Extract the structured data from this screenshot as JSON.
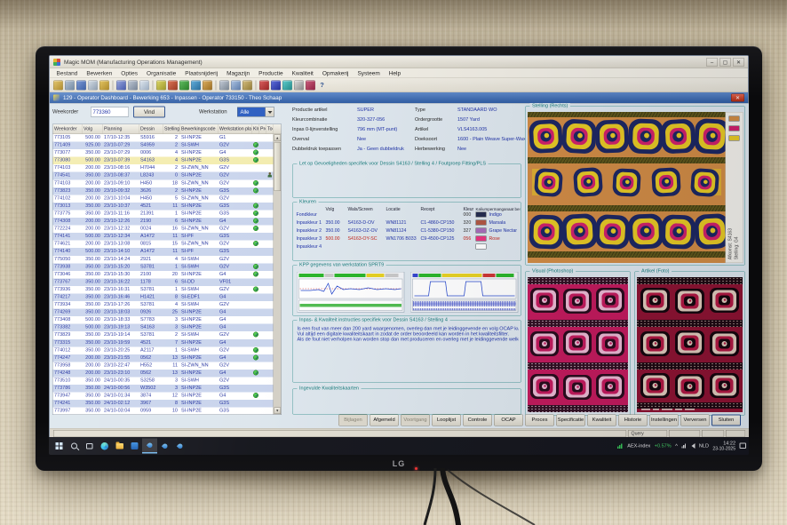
{
  "window": {
    "title": "Magic MOM (Manufacturing Operations Management)",
    "controls": {
      "minimize": "–",
      "maximize": "▢",
      "close": "✕"
    },
    "menu": [
      "Bestand",
      "Bewerken",
      "Opties",
      "Organisatie",
      "Plaatsnijderij",
      "Magazijn",
      "Productie",
      "Kwaliteit",
      "Opmakerij",
      "Systeem",
      "Help"
    ],
    "toolbar_icons": [
      {
        "name": "open",
        "c1": "#e0c060",
        "c2": "#a8821c"
      },
      {
        "name": "print",
        "c1": "#aebdcd",
        "c2": "#67819c"
      },
      {
        "name": "save",
        "c1": "#6f8fd0",
        "c2": "#2f55a0"
      },
      {
        "name": "preview",
        "c1": "#cfd8e2",
        "c2": "#8898ab"
      },
      {
        "name": "mail",
        "c1": "#e0bf55",
        "c2": "#a8821c"
      },
      {
        "name": "sep"
      },
      {
        "name": "grid",
        "c1": "#8f9fd8",
        "c2": "#3c50a8"
      },
      {
        "name": "layout",
        "c1": "#b8c2cf",
        "c2": "#707e92"
      },
      {
        "name": "zoom",
        "c1": "#dce4ec",
        "c2": "#97a9bf"
      },
      {
        "name": "sep"
      },
      {
        "name": "tag",
        "c1": "#d8d25a",
        "c2": "#989220"
      },
      {
        "name": "target",
        "c1": "#d86a4a",
        "c2": "#98321a"
      },
      {
        "name": "play",
        "c1": "#58b858",
        "c2": "#1f7a1f"
      },
      {
        "name": "refresh",
        "c1": "#58a8d8",
        "c2": "#1f6898"
      },
      {
        "name": "undo",
        "c1": "#d8a858",
        "c2": "#986818"
      },
      {
        "name": "sep"
      },
      {
        "name": "cut",
        "c1": "#c0c8d4",
        "c2": "#76828f"
      },
      {
        "name": "copy",
        "c1": "#a8c0e0",
        "c2": "#5878a8"
      },
      {
        "name": "paste",
        "c1": "#d0b878",
        "c2": "#907830"
      },
      {
        "name": "sep"
      },
      {
        "name": "grid-red",
        "c1": "#d85858",
        "c2": "#981f1f"
      },
      {
        "name": "grid-blue",
        "c1": "#5868d8",
        "c2": "#1f2c98"
      },
      {
        "name": "grid-teal",
        "c1": "#58c8c8",
        "c2": "#1f8888"
      },
      {
        "name": "calendar",
        "c1": "#d8d8d8",
        "c2": "#888888"
      },
      {
        "name": "chart",
        "c1": "#c85878",
        "c2": "#8f1f40"
      }
    ],
    "toolbar_help": "?",
    "subwindow_title": "129 - Operator Dashboard - Bewerking 653 - Inpassen - Operator 733150 - Theo Schaap"
  },
  "filters": {
    "weekorder_label": "Weekorder",
    "weekorder_value": "773360",
    "find_button": "Vind",
    "werkstation_label": "Werkstation",
    "werkstation_value": "Alle"
  },
  "orders": {
    "headers": [
      "Weekorder",
      "Volg",
      "Planning",
      "Dessin",
      "Stelling",
      "Bewerkingscode",
      "Werkstation planning",
      "Klr",
      "Pro",
      "Toe"
    ],
    "selected_weekorder": "773080",
    "rows": [
      [
        "773105",
        "500.00",
        "17/10-12:35",
        "S5916",
        "2",
        "SI-INP2E",
        "G1",
        ""
      ],
      [
        "771409",
        "925.00",
        "23/10-07:29",
        "S4959",
        "2",
        "SI-SWH",
        "G2V",
        "ok"
      ],
      [
        "773077",
        "350.00",
        "23/10-07:29",
        "0006",
        "4",
        "SI-INP2E",
        "G4",
        "ok"
      ],
      [
        "773080",
        "500.00",
        "23/10-07:39",
        "S4163",
        "4",
        "SI-INP2E",
        "G3S",
        "ok"
      ],
      [
        "774103",
        "200.00",
        "23/10-08:16",
        "H7044",
        "2",
        "SI-ZWN_NN",
        "G2V",
        ""
      ],
      [
        "774541",
        "350.00",
        "23/10-08:37",
        "L8243",
        "0",
        "SI-INP2E",
        "G2V",
        "person"
      ],
      [
        "774103",
        "200.00",
        "23/10-09:10",
        "H450",
        "18",
        "SI-ZWN_NN",
        "G2V",
        "ok"
      ],
      [
        "773823",
        "350.00",
        "23/10-09:32",
        "3626",
        "2",
        "SI-INP2E",
        "G3S",
        "ok"
      ],
      [
        "774102",
        "200.00",
        "23/10-10:04",
        "H450",
        "5",
        "SI-ZWN_NN",
        "G2V",
        ""
      ],
      [
        "773013",
        "350.00",
        "23/10-10:37",
        "4521",
        "11",
        "SI-INP2E",
        "G3S",
        "ok"
      ],
      [
        "773775",
        "350.00",
        "23/10-11:16",
        "21391",
        "1",
        "SI-INP2E",
        "G3S",
        "ok"
      ],
      [
        "774308",
        "200.00",
        "23/10-12:26",
        "2190",
        "6",
        "SI-INP2E",
        "G4",
        "ok"
      ],
      [
        "772224",
        "200.00",
        "23/10-12:32",
        "0024",
        "16",
        "SI-ZWN_NN",
        "G2V",
        "ok"
      ],
      [
        "774141",
        "500.00",
        "23/10-12:34",
        "A1472",
        "11",
        "SI-PF",
        "G3S",
        ""
      ],
      [
        "774621",
        "200.00",
        "23/10-13:08",
        "0815",
        "15",
        "SI-ZWN_NN",
        "G2V",
        "ok"
      ],
      [
        "774140",
        "500.00",
        "23/10-14:10",
        "A1472",
        "11",
        "SI-PF",
        "G3S",
        ""
      ],
      [
        "775050",
        "350.00",
        "23/10-14:24",
        "2921",
        "4",
        "SI-SWH",
        "G2V",
        ""
      ],
      [
        "773938",
        "350.00",
        "23/10-15:20",
        "S3781",
        "1",
        "SI-SWH",
        "G2V",
        "ok"
      ],
      [
        "773046",
        "350.00",
        "23/10-15:30",
        "2100",
        "20",
        "SI-INP2E",
        "G4",
        "ok"
      ],
      [
        "773767",
        "350.00",
        "23/10-16:22",
        "1178",
        "6",
        "SI-DD",
        "VF01",
        ""
      ],
      [
        "773936",
        "350.00",
        "23/10-16:31",
        "S3781",
        "1",
        "SI-SWH",
        "G2V",
        "ok"
      ],
      [
        "774217",
        "350.00",
        "23/10-16:46",
        "H1421",
        "8",
        "SI-EDF1",
        "G4",
        ""
      ],
      [
        "773934",
        "350.00",
        "23/10-17:26",
        "S3781",
        "4",
        "SI-SWH",
        "G2V",
        ""
      ],
      [
        "774269",
        "350.00",
        "23/10-18:03",
        "0926",
        "25",
        "SI-INP2E",
        "G4",
        ""
      ],
      [
        "773408",
        "500.00",
        "23/10-18:33",
        "S7783",
        "3",
        "SI-INP2E",
        "G4",
        ""
      ],
      [
        "773382",
        "500.00",
        "23/10-19:13",
        "S4163",
        "3",
        "SI-INP2E",
        "G4",
        ""
      ],
      [
        "773829",
        "350.00",
        "23/10-19:14",
        "S3781",
        "2",
        "SI-SWH",
        "G2V",
        "ok"
      ],
      [
        "773315",
        "350.00",
        "23/10-19:59",
        "4521",
        "7",
        "SI-INP2E",
        "G4",
        ""
      ],
      [
        "774012",
        "350.00",
        "23/10-20:25",
        "A2117",
        "1",
        "SI-SWH",
        "G2V",
        "ok"
      ],
      [
        "774247",
        "200.00",
        "23/10-21:55",
        "0562",
        "13",
        "SI-INP2E",
        "G4",
        "ok"
      ],
      [
        "773958",
        "200.00",
        "23/10-22:47",
        "H552",
        "11",
        "SI-ZWN_NN",
        "G2V",
        ""
      ],
      [
        "774248",
        "200.00",
        "23/10-23:10",
        "0562",
        "13",
        "SI-INP2E",
        "G4",
        "ok"
      ],
      [
        "773510",
        "350.00",
        "24/10-00:35",
        "S3258",
        "3",
        "SI-SWH",
        "G2V",
        ""
      ],
      [
        "773786",
        "350.00",
        "24/10-00:56",
        "W3502",
        "3",
        "SI-INP2E",
        "G3S",
        ""
      ],
      [
        "773947",
        "350.00",
        "24/10-01:34",
        "3874",
        "12",
        "SI-INP2E",
        "G4",
        "ok"
      ],
      [
        "774241",
        "350.00",
        "24/10-02:12",
        "3967",
        "8",
        "SI-INP2E",
        "G3S",
        ""
      ],
      [
        "773997",
        "350.00",
        "24/10-03:04",
        "0959",
        "10",
        "SI-INP2E",
        "G3S",
        ""
      ]
    ]
  },
  "product": {
    "left": [
      [
        "Productie artikel",
        "SUPER"
      ],
      [
        "Kleurcombinatie",
        "320-327-056"
      ],
      [
        "Inpas 0-lijnverstelling",
        "796   mm (MT-punt)"
      ],
      [
        "Overval",
        "Nee"
      ],
      [
        "Dubbeldruk toepassen",
        "Ja - Geen dubbeldruk"
      ]
    ],
    "right": [
      [
        "Type",
        "STANDAARD WO"
      ],
      [
        "Ordergrootte",
        "1507 Yard"
      ],
      [
        "Artikel",
        "VLS4163.005"
      ],
      [
        "Doeksoort",
        "1600 - Plain Weave Super-Wax"
      ],
      [
        "Herbewerking",
        "Nee"
      ]
    ]
  },
  "boxes": {
    "gevoeligheden": "Let op Gevoeligheden specifiek voor Dessin S4163 / Stelling 4 / Foutgroep Fitting/PLS",
    "kleuren": "Kleuren",
    "kpp": "KPP gegevens van werkstation SPRT9",
    "instructies": "Inpas- & Kwaliteit instructies specifiek voor Dessin S4163 / Stelling 4",
    "kaarten": "Ingevulde Kwaliteitskaarten",
    "stelling": "Stelling (Rechts)",
    "visual": "Visual (Photoshop)",
    "artikel": "Artikel (Foto)"
  },
  "kleuren": {
    "headers": [
      "Volg",
      "Wals/Screen",
      "Locatie",
      "Recept",
      "Kleur",
      "Kaliumpermanganaat bestendig"
    ],
    "rows": [
      {
        "name": "Fondkleur",
        "volg": "",
        "wals": "",
        "locatie": "",
        "recept": "",
        "nr": "000",
        "swatch": "#232a4d",
        "kleur": "Indigo",
        "alert": false
      },
      {
        "name": "Inpaskleur 1",
        "volg": "350.00",
        "wals": "S4163-D-OV",
        "locatie": "WN81121",
        "recept": "C1-4860-CP150",
        "nr": "320",
        "swatch": "#b05642",
        "kleur": "Marsala",
        "alert": false
      },
      {
        "name": "Inpaskleur 2",
        "volg": "350.00",
        "wals": "S4163-OZ-OV",
        "locatie": "WN81124",
        "recept": "C1-5380-CP150",
        "nr": "327",
        "swatch": "#a66bb8",
        "kleur": "Grape Nectar",
        "alert": false
      },
      {
        "name": "Inpaskleur 3",
        "volg": "500.00",
        "wals": "S4163-OY-SC",
        "locatie": "WN1706 B033",
        "recept": "C9-4500-CP125",
        "nr": "056",
        "swatch": "#e8337e",
        "kleur": "Rose",
        "alert": true
      },
      {
        "name": "Inpaskleur 4",
        "volg": "",
        "wals": "",
        "locatie": "",
        "recept": "",
        "nr": "",
        "swatch": "#ffffff",
        "kleur": "",
        "alert": false
      }
    ]
  },
  "instructies_lines": [
    "Is een fout van meer dan 200 yard waargenomen, overleg dan met je leidinggevende en volg OCAP kwaliteitscontrole (OCAP-button).",
    "Vul altijd een digitale kwaliteitskaart in zodat de order beoordeeld kan worden in het kwaliteitsfilter.",
    "Als de fout niet verholpen kan worden stop dan met produceren en overleg met je leidinggevende welke actie genomen moet worden!"
  ],
  "stelling_info": {
    "line1": "Afkomst: S4163",
    "line2": "Stelling: G4"
  },
  "action_buttons": [
    {
      "label": "Bijlagen",
      "disabled": true
    },
    {
      "label": "Afgemeld",
      "disabled": false
    },
    {
      "label": "Voortgang",
      "disabled": true
    },
    {
      "label": "Looplijst",
      "disabled": false
    },
    {
      "label": "Controle",
      "disabled": false
    },
    {
      "label": "OCAP",
      "disabled": false
    },
    {
      "label": "Proces",
      "disabled": false
    },
    {
      "label": "Specificatie",
      "disabled": false
    },
    {
      "label": "Kwaliteit",
      "disabled": false
    },
    {
      "label": "Historie",
      "disabled": false
    },
    {
      "label": "Instellingen",
      "disabled": false
    },
    {
      "label": "Verversen",
      "disabled": false
    },
    {
      "label": "Sluiten",
      "disabled": false,
      "default": true
    }
  ],
  "statusbar": {
    "query": "Query"
  },
  "taskbar": {
    "stock_label": "AEX-index",
    "stock_change": "+0.57%",
    "caret": "^",
    "lang": "NLD",
    "time": "14:22",
    "date": "23-10-2025"
  },
  "monitor": {
    "brand": "LG"
  }
}
